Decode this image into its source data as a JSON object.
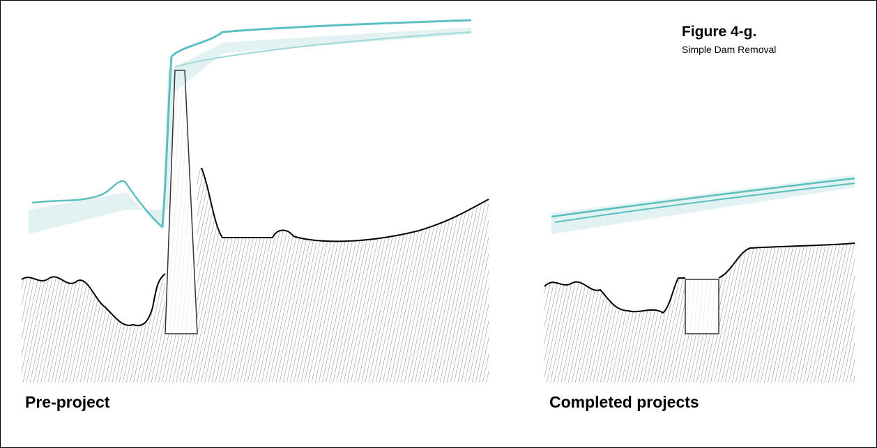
{
  "figure": {
    "label": "Figure 4-g.",
    "title": "Simple Dam Removal"
  },
  "panels": [
    {
      "label": "Pre-project"
    },
    {
      "label": "Completed projects"
    }
  ]
}
